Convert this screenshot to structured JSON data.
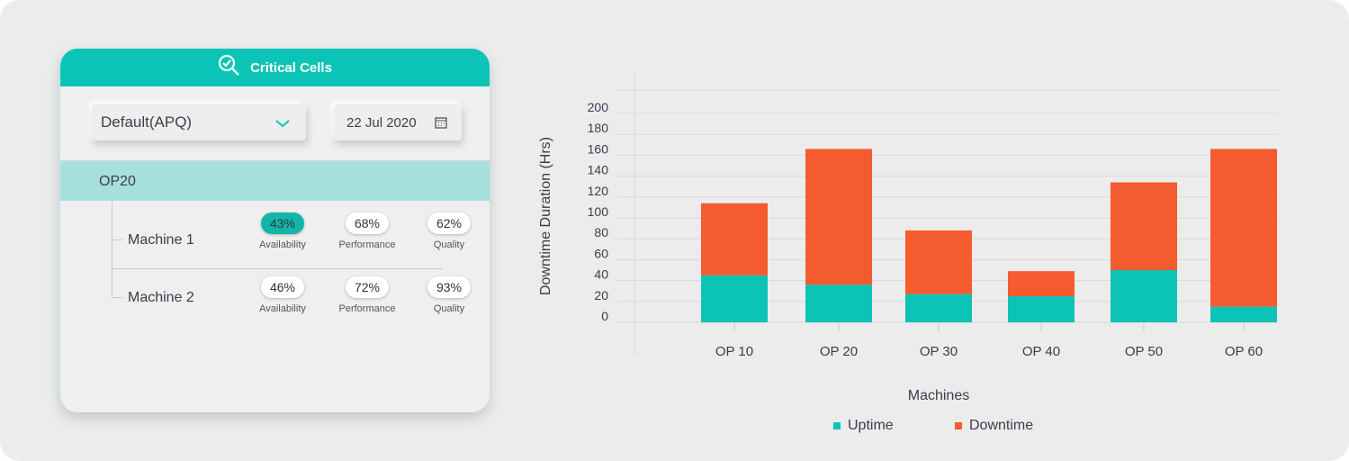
{
  "card": {
    "title": "Critical Cells",
    "dropdown_value": "Default(APQ)",
    "date_value": "22 Jul 2020",
    "group": "OP20",
    "machines": [
      {
        "name": "Machine 1",
        "metrics": [
          {
            "value": "43%",
            "label": "Availability",
            "highlighted": true
          },
          {
            "value": "68%",
            "label": "Performance"
          },
          {
            "value": "62%",
            "label": "Quality"
          }
        ]
      },
      {
        "name": "Machine 2",
        "metrics": [
          {
            "value": "46%",
            "label": "Availability"
          },
          {
            "value": "72%",
            "label": "Performance"
          },
          {
            "value": "93%",
            "label": "Quality"
          }
        ]
      }
    ]
  },
  "colors": {
    "accent": "#0cc4b6",
    "uptime": "#0cc4b6",
    "downtime": "#f45b2e"
  },
  "chart_data": {
    "type": "bar",
    "stacked": true,
    "categories": [
      "OP 10",
      "OP 20",
      "OP 30",
      "OP 40",
      "OP 50",
      "OP 60"
    ],
    "series": [
      {
        "name": "Uptime",
        "values": [
          45,
          36,
          27,
          25,
          50,
          15
        ]
      },
      {
        "name": "Downtime",
        "values": [
          69,
          130,
          61,
          24,
          84,
          151
        ]
      }
    ],
    "xlabel": "Machines",
    "ylabel": "Downtime Duration (Hrs)",
    "ylim": [
      0,
      200
    ],
    "yticks": [
      0,
      20,
      40,
      60,
      80,
      100,
      120,
      140,
      160,
      180,
      200
    ],
    "grid": true,
    "legend_position": "bottom"
  }
}
